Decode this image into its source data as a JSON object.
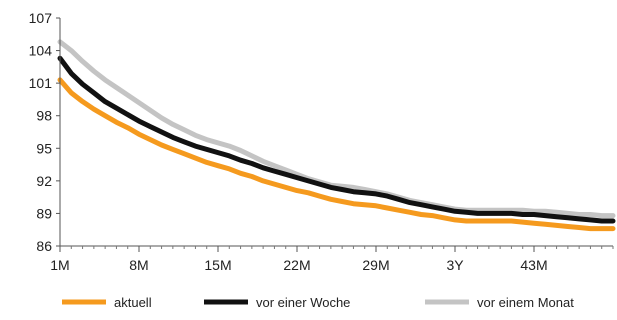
{
  "chart_data": {
    "type": "line",
    "title": "",
    "xlabel": "",
    "ylabel": "",
    "x_tick_labels": [
      "1M",
      "8M",
      "15M",
      "22M",
      "29M",
      "3Y",
      "43M"
    ],
    "y_ticks": [
      86,
      89,
      92,
      95,
      98,
      101,
      104,
      107
    ],
    "ylim": [
      86,
      107
    ],
    "xlim": [
      1,
      50
    ],
    "grid": false,
    "legend_position": "bottom",
    "series": [
      {
        "name": "aktuell",
        "color": "#f59a1e",
        "points": [
          [
            1,
            101.3
          ],
          [
            2,
            100.1
          ],
          [
            3,
            99.3
          ],
          [
            4,
            98.6
          ],
          [
            5,
            98.0
          ],
          [
            6,
            97.4
          ],
          [
            7,
            96.9
          ],
          [
            8,
            96.3
          ],
          [
            9,
            95.8
          ],
          [
            10,
            95.3
          ],
          [
            11,
            94.9
          ],
          [
            12,
            94.5
          ],
          [
            13,
            94.1
          ],
          [
            14,
            93.7
          ],
          [
            15,
            93.4
          ],
          [
            16,
            93.1
          ],
          [
            17,
            92.7
          ],
          [
            18,
            92.4
          ],
          [
            19,
            92.0
          ],
          [
            20,
            91.7
          ],
          [
            21,
            91.4
          ],
          [
            22,
            91.1
          ],
          [
            23,
            90.9
          ],
          [
            24,
            90.6
          ],
          [
            25,
            90.3
          ],
          [
            26,
            90.1
          ],
          [
            27,
            89.9
          ],
          [
            28,
            89.8
          ],
          [
            29,
            89.7
          ],
          [
            30,
            89.5
          ],
          [
            31,
            89.3
          ],
          [
            32,
            89.1
          ],
          [
            33,
            88.9
          ],
          [
            34,
            88.8
          ],
          [
            35,
            88.6
          ],
          [
            36,
            88.4
          ],
          [
            37,
            88.3
          ],
          [
            38,
            88.3
          ],
          [
            39,
            88.3
          ],
          [
            40,
            88.3
          ],
          [
            41,
            88.3
          ],
          [
            42,
            88.2
          ],
          [
            43,
            88.1
          ],
          [
            44,
            88.0
          ],
          [
            45,
            87.9
          ],
          [
            46,
            87.8
          ],
          [
            47,
            87.7
          ],
          [
            48,
            87.6
          ],
          [
            49,
            87.6
          ],
          [
            50,
            87.6
          ]
        ]
      },
      {
        "name": "vor einer Woche",
        "color": "#111111",
        "points": [
          [
            1,
            103.3
          ],
          [
            2,
            101.9
          ],
          [
            3,
            100.9
          ],
          [
            4,
            100.1
          ],
          [
            5,
            99.3
          ],
          [
            6,
            98.7
          ],
          [
            7,
            98.1
          ],
          [
            8,
            97.5
          ],
          [
            9,
            97.0
          ],
          [
            10,
            96.5
          ],
          [
            11,
            96.0
          ],
          [
            12,
            95.6
          ],
          [
            13,
            95.2
          ],
          [
            14,
            94.9
          ],
          [
            15,
            94.6
          ],
          [
            16,
            94.3
          ],
          [
            17,
            93.9
          ],
          [
            18,
            93.6
          ],
          [
            19,
            93.2
          ],
          [
            20,
            92.9
          ],
          [
            21,
            92.6
          ],
          [
            22,
            92.3
          ],
          [
            23,
            92.0
          ],
          [
            24,
            91.7
          ],
          [
            25,
            91.4
          ],
          [
            26,
            91.2
          ],
          [
            27,
            91.0
          ],
          [
            28,
            90.9
          ],
          [
            29,
            90.8
          ],
          [
            30,
            90.6
          ],
          [
            31,
            90.3
          ],
          [
            32,
            90.0
          ],
          [
            33,
            89.8
          ],
          [
            34,
            89.6
          ],
          [
            35,
            89.4
          ],
          [
            36,
            89.2
          ],
          [
            37,
            89.1
          ],
          [
            38,
            89.0
          ],
          [
            39,
            89.0
          ],
          [
            40,
            89.0
          ],
          [
            41,
            89.0
          ],
          [
            42,
            88.9
          ],
          [
            43,
            88.9
          ],
          [
            44,
            88.8
          ],
          [
            45,
            88.7
          ],
          [
            46,
            88.6
          ],
          [
            47,
            88.5
          ],
          [
            48,
            88.4
          ],
          [
            49,
            88.3
          ],
          [
            50,
            88.3
          ]
        ]
      },
      {
        "name": "vor einem Monat",
        "color": "#c4c4c4",
        "points": [
          [
            1,
            104.8
          ],
          [
            2,
            104.0
          ],
          [
            3,
            103.0
          ],
          [
            4,
            102.1
          ],
          [
            5,
            101.3
          ],
          [
            6,
            100.6
          ],
          [
            7,
            99.9
          ],
          [
            8,
            99.2
          ],
          [
            9,
            98.5
          ],
          [
            10,
            97.8
          ],
          [
            11,
            97.2
          ],
          [
            12,
            96.7
          ],
          [
            13,
            96.2
          ],
          [
            14,
            95.8
          ],
          [
            15,
            95.5
          ],
          [
            16,
            95.2
          ],
          [
            17,
            94.8
          ],
          [
            18,
            94.3
          ],
          [
            19,
            93.8
          ],
          [
            20,
            93.4
          ],
          [
            21,
            93.0
          ],
          [
            22,
            92.6
          ],
          [
            23,
            92.2
          ],
          [
            24,
            91.9
          ],
          [
            25,
            91.6
          ],
          [
            26,
            91.5
          ],
          [
            27,
            91.4
          ],
          [
            28,
            91.2
          ],
          [
            29,
            91.0
          ],
          [
            30,
            90.8
          ],
          [
            31,
            90.5
          ],
          [
            32,
            90.2
          ],
          [
            33,
            90.0
          ],
          [
            34,
            89.8
          ],
          [
            35,
            89.6
          ],
          [
            36,
            89.4
          ],
          [
            37,
            89.3
          ],
          [
            38,
            89.3
          ],
          [
            39,
            89.3
          ],
          [
            40,
            89.3
          ],
          [
            41,
            89.3
          ],
          [
            42,
            89.3
          ],
          [
            43,
            89.2
          ],
          [
            44,
            89.2
          ],
          [
            45,
            89.1
          ],
          [
            46,
            89.0
          ],
          [
            47,
            88.9
          ],
          [
            48,
            88.9
          ],
          [
            49,
            88.8
          ],
          [
            50,
            88.8
          ]
        ]
      }
    ]
  }
}
